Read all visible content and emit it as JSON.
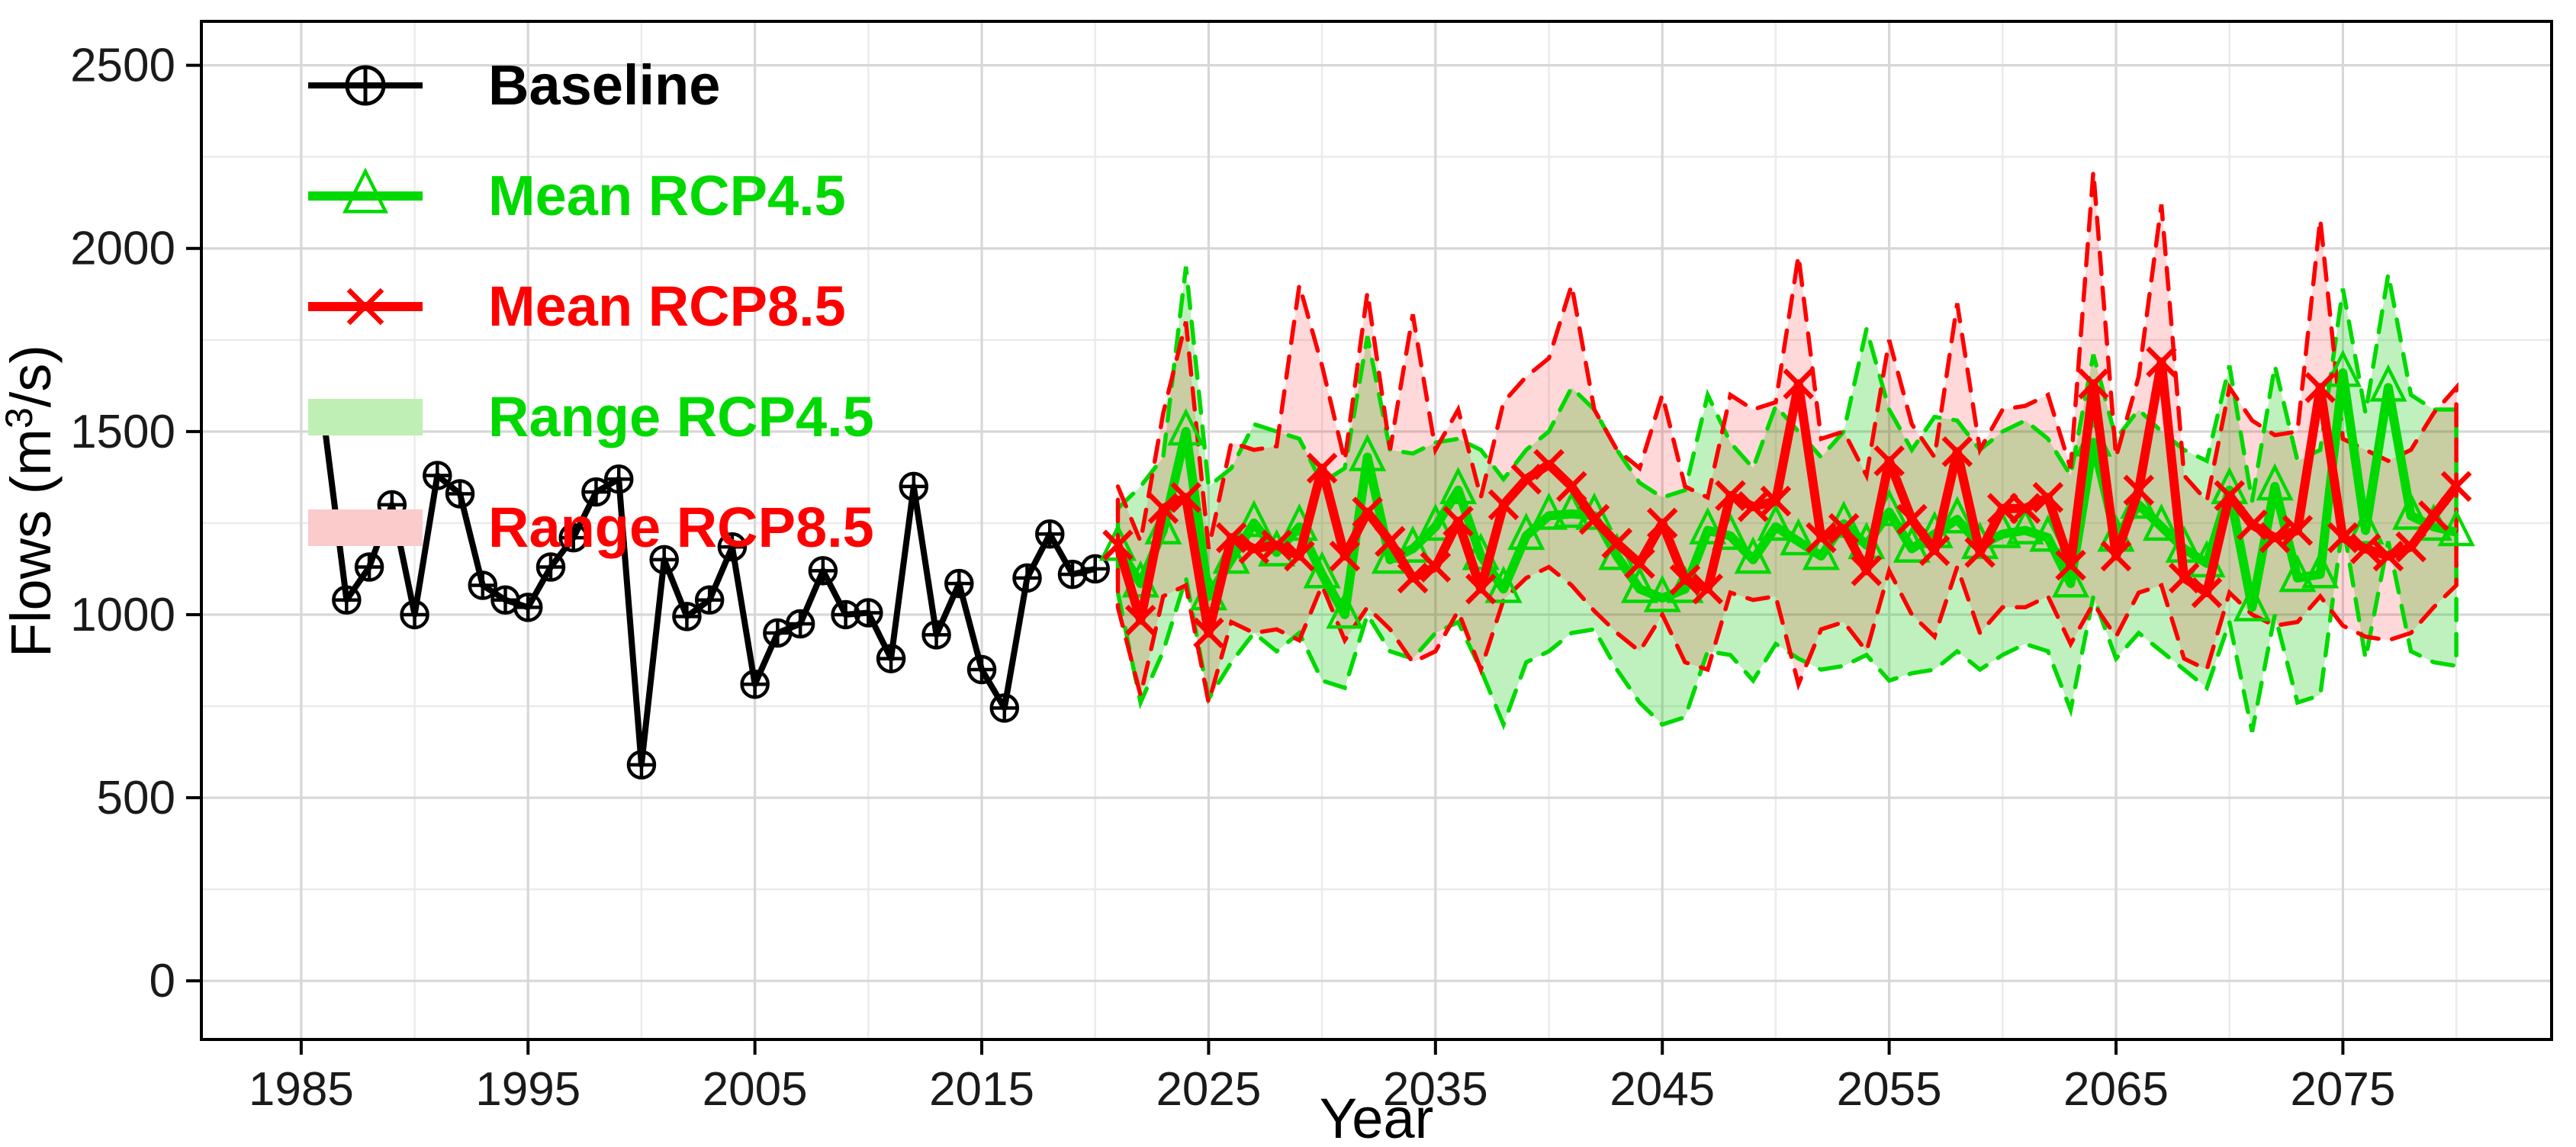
{
  "chart_data": {
    "type": "line",
    "title": "",
    "xlabel": "Year",
    "ylabel": "Flows (m³/s)",
    "ylabel_parts": [
      "Flows (m",
      "3",
      "/s)"
    ],
    "x_ticks": [
      1985,
      1995,
      2005,
      2015,
      2025,
      2035,
      2045,
      2055,
      2065,
      2075
    ],
    "x_minor_ticks": [
      1990,
      2000,
      2010,
      2020,
      2030,
      2040,
      2050,
      2060,
      2070,
      2080
    ],
    "y_ticks": [
      0,
      500,
      1000,
      1500,
      2000,
      2500
    ],
    "y_minor_ticks": [
      250,
      750,
      1250,
      1750,
      2250
    ],
    "xlim": [
      1980.6,
      2084.2
    ],
    "ylim": [
      -160,
      2620
    ],
    "grid": true,
    "legend_position": "top-left-inside",
    "colors": {
      "baseline": "#000000",
      "rcp45": "#00D900",
      "rcp85": "#FF0000",
      "band45_fill": "rgba(0,200,0,0.25)",
      "band85_fill": "rgba(255,0,0,0.15)",
      "grid_major": "#D7D7D7",
      "grid_minor": "#EBEBEB",
      "axis_text": "#1A1A1A",
      "panel_border": "#000000"
    },
    "legend": [
      {
        "label": "Baseline",
        "type": "line-marker",
        "marker": "circle-plus",
        "color": "#000000",
        "swatch": "#000000"
      },
      {
        "label": "Mean RCP4.5",
        "type": "line-marker",
        "marker": "triangle-open",
        "color": "#00D900",
        "swatch": "#00D900"
      },
      {
        "label": "Mean RCP8.5",
        "type": "line-marker",
        "marker": "x-cross",
        "color": "#FF0000",
        "swatch": "#FF0000"
      },
      {
        "label": "Range RCP4.5",
        "type": "band",
        "marker": "none",
        "color": "#00D900",
        "swatch": "#BFEFB4"
      },
      {
        "label": "Range RCP8.5",
        "type": "band",
        "marker": "none",
        "color": "#FF0000",
        "swatch": "#FBCACA"
      }
    ],
    "series": [
      {
        "name": "Baseline",
        "x": [
          1986,
          1987,
          1988,
          1989,
          1990,
          1991,
          1992,
          1993,
          1994,
          1995,
          1996,
          1997,
          1998,
          1999,
          2000,
          2001,
          2002,
          2003,
          2004,
          2005,
          2006,
          2007,
          2008,
          2009,
          2010,
          2011,
          2012,
          2013,
          2014,
          2015,
          2016,
          2017,
          2018,
          2019,
          2020
        ],
        "y": [
          1530,
          1040,
          1130,
          1300,
          1000,
          1380,
          1330,
          1080,
          1040,
          1020,
          1130,
          1210,
          1335,
          1370,
          590,
          1150,
          995,
          1040,
          1185,
          810,
          950,
          975,
          1120,
          1000,
          1005,
          880,
          1350,
          945,
          1085,
          850,
          745,
          1100,
          1220,
          1110,
          1125
        ]
      },
      {
        "name": "Mean RCP4.5",
        "x": [
          2021,
          2022,
          2023,
          2024,
          2025,
          2026,
          2027,
          2028,
          2029,
          2030,
          2031,
          2032,
          2033,
          2034,
          2035,
          2036,
          2037,
          2038,
          2039,
          2040,
          2041,
          2042,
          2043,
          2044,
          2045,
          2046,
          2047,
          2048,
          2049,
          2050,
          2051,
          2052,
          2053,
          2054,
          2055,
          2056,
          2057,
          2058,
          2059,
          2060,
          2061,
          2062,
          2063,
          2064,
          2065,
          2066,
          2067,
          2068,
          2069,
          2070,
          2071,
          2072,
          2073,
          2074,
          2075,
          2076,
          2077,
          2078,
          2079,
          2080
        ],
        "y": [
          1185,
          1085,
          1230,
          1500,
          1050,
          1150,
          1250,
          1170,
          1240,
          1110,
          1000,
          1430,
          1150,
          1180,
          1240,
          1340,
          1160,
          1070,
          1215,
          1270,
          1275,
          1270,
          1160,
          1070,
          1045,
          1070,
          1230,
          1215,
          1150,
          1240,
          1200,
          1160,
          1248,
          1190,
          1280,
          1180,
          1220,
          1260,
          1190,
          1220,
          1230,
          1210,
          1085,
          1470,
          1210,
          1300,
          1240,
          1180,
          1140,
          1340,
          1020,
          1350,
          1100,
          1110,
          1660,
          1230,
          1620,
          1270,
          1240,
          1225
        ]
      },
      {
        "name": "Mean RCP8.5",
        "x": [
          2021,
          2022,
          2023,
          2024,
          2025,
          2026,
          2027,
          2028,
          2029,
          2030,
          2031,
          2032,
          2033,
          2034,
          2035,
          2036,
          2037,
          2038,
          2039,
          2040,
          2041,
          2042,
          2043,
          2044,
          2045,
          2046,
          2047,
          2048,
          2049,
          2050,
          2051,
          2052,
          2053,
          2054,
          2055,
          2056,
          2057,
          2058,
          2059,
          2060,
          2061,
          2062,
          2063,
          2064,
          2065,
          2066,
          2067,
          2068,
          2069,
          2070,
          2071,
          2072,
          2073,
          2074,
          2075,
          2076,
          2077,
          2078,
          2079,
          2080
        ],
        "y": [
          1190,
          985,
          1290,
          1320,
          950,
          1210,
          1180,
          1190,
          1160,
          1400,
          1160,
          1280,
          1200,
          1100,
          1130,
          1255,
          1070,
          1300,
          1370,
          1410,
          1350,
          1260,
          1195,
          1140,
          1250,
          1095,
          1070,
          1325,
          1295,
          1310,
          1630,
          1210,
          1235,
          1120,
          1420,
          1260,
          1175,
          1445,
          1170,
          1290,
          1290,
          1320,
          1135,
          1630,
          1160,
          1340,
          1690,
          1100,
          1060,
          1325,
          1245,
          1210,
          1230,
          1620,
          1210,
          1180,
          1160,
          1185,
          1270,
          1350
        ]
      },
      {
        "name": "Range RCP4.5",
        "x": [
          2021,
          2022,
          2023,
          2024,
          2025,
          2026,
          2027,
          2028,
          2029,
          2030,
          2031,
          2032,
          2033,
          2034,
          2035,
          2036,
          2037,
          2038,
          2039,
          2040,
          2041,
          2042,
          2043,
          2044,
          2045,
          2046,
          2047,
          2048,
          2049,
          2050,
          2051,
          2052,
          2053,
          2054,
          2055,
          2056,
          2057,
          2058,
          2059,
          2060,
          2061,
          2062,
          2063,
          2064,
          2065,
          2066,
          2067,
          2068,
          2069,
          2070,
          2071,
          2072,
          2073,
          2074,
          2075,
          2076,
          2077,
          2078,
          2079,
          2080
        ],
        "upper": [
          1290,
          1350,
          1430,
          1950,
          1350,
          1400,
          1520,
          1500,
          1480,
          1360,
          1400,
          1760,
          1450,
          1440,
          1470,
          1480,
          1450,
          1370,
          1450,
          1500,
          1620,
          1560,
          1450,
          1360,
          1320,
          1340,
          1600,
          1470,
          1400,
          1570,
          1500,
          1430,
          1500,
          1780,
          1560,
          1450,
          1540,
          1530,
          1450,
          1500,
          1530,
          1480,
          1380,
          1710,
          1480,
          1560,
          1500,
          1450,
          1420,
          1680,
          1310,
          1680,
          1420,
          1450,
          1890,
          1550,
          1930,
          1600,
          1560,
          1560
        ],
        "lower": [
          1060,
          760,
          900,
          1100,
          770,
          870,
          950,
          900,
          950,
          820,
          800,
          1000,
          900,
          880,
          950,
          980,
          850,
          700,
          870,
          900,
          950,
          960,
          850,
          760,
          700,
          720,
          900,
          890,
          820,
          920,
          880,
          850,
          860,
          890,
          820,
          840,
          850,
          900,
          850,
          890,
          920,
          900,
          740,
          1050,
          880,
          950,
          900,
          850,
          800,
          980,
          680,
          1000,
          760,
          780,
          1250,
          880,
          1200,
          900,
          870,
          860
        ]
      },
      {
        "name": "Range RCP8.5",
        "x": [
          2021,
          2022,
          2023,
          2024,
          2025,
          2026,
          2027,
          2028,
          2029,
          2030,
          2031,
          2032,
          2033,
          2034,
          2035,
          2036,
          2037,
          2038,
          2039,
          2040,
          2041,
          2042,
          2043,
          2044,
          2045,
          2046,
          2047,
          2048,
          2049,
          2050,
          2051,
          2052,
          2053,
          2054,
          2055,
          2056,
          2057,
          2058,
          2059,
          2060,
          2061,
          2062,
          2063,
          2064,
          2065,
          2066,
          2067,
          2068,
          2069,
          2070,
          2071,
          2072,
          2073,
          2074,
          2075,
          2076,
          2077,
          2078,
          2079,
          2080
        ],
        "upper": [
          1350,
          1200,
          1550,
          1800,
          1180,
          1470,
          1450,
          1460,
          1900,
          1680,
          1420,
          1880,
          1450,
          1820,
          1450,
          1560,
          1320,
          1580,
          1650,
          1700,
          1900,
          1560,
          1450,
          1400,
          1600,
          1350,
          1320,
          1600,
          1560,
          1580,
          1980,
          1480,
          1500,
          1380,
          1750,
          1520,
          1430,
          1850,
          1450,
          1560,
          1570,
          1600,
          1400,
          2210,
          1430,
          1650,
          2120,
          1380,
          1310,
          1620,
          1530,
          1490,
          1500,
          2080,
          1480,
          1450,
          1420,
          1450,
          1550,
          1620
        ],
        "lower": [
          1020,
          780,
          1050,
          1080,
          760,
          980,
          950,
          960,
          930,
          1080,
          930,
          1020,
          960,
          870,
          900,
          1010,
          850,
          1040,
          1100,
          1130,
          1080,
          1010,
          950,
          900,
          1000,
          870,
          850,
          1060,
          1040,
          1050,
          810,
          960,
          980,
          900,
          1120,
          1000,
          940,
          1130,
          950,
          1020,
          1020,
          1050,
          920,
          1030,
          940,
          1060,
          1080,
          880,
          850,
          1060,
          1000,
          970,
          980,
          1050,
          970,
          940,
          930,
          950,
          1020,
          1080
        ]
      }
    ]
  }
}
